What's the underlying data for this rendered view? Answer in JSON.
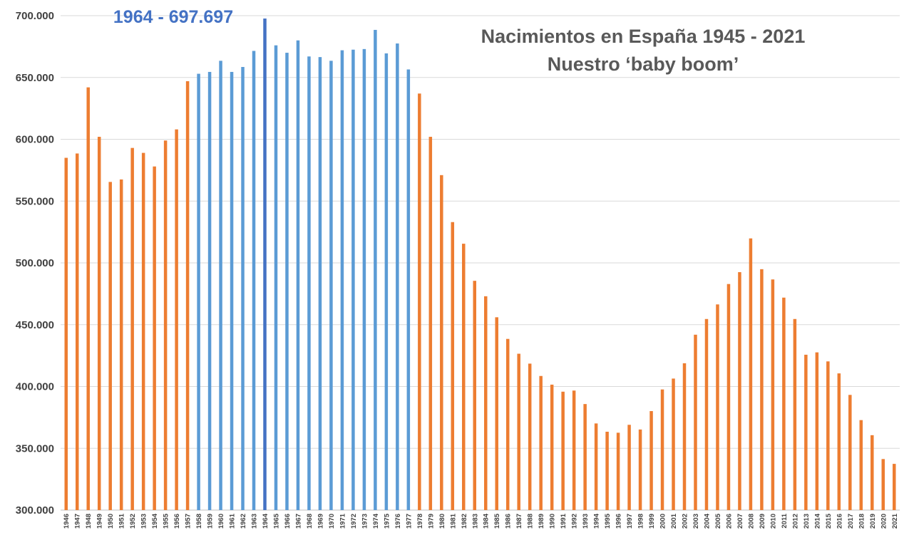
{
  "chart_data": {
    "type": "bar",
    "title": [
      "Nacimientos en España 1945 - 2021",
      "Nuestro ‘baby boom’"
    ],
    "annotation": "1964 - 697.697",
    "xlabel": "",
    "ylabel": "",
    "ylim": [
      300000,
      700000
    ],
    "yticks": [
      300000,
      350000,
      400000,
      450000,
      500000,
      550000,
      600000,
      650000,
      700000
    ],
    "ytick_labels": [
      "300.000",
      "350.000",
      "400.000",
      "450.000",
      "500.000",
      "550.000",
      "600.000",
      "650.000",
      "700.000"
    ],
    "grid": true,
    "colors": {
      "normal": "#ED7D31",
      "baby_boom": "#5B9BD5",
      "peak": "#4472C4",
      "annotation": "#4472C4",
      "grid": "#D9D9D9"
    },
    "baby_boom_range": [
      1958,
      1977
    ],
    "peak_year": "1964",
    "categories": [
      "1946",
      "1947",
      "1948",
      "1949",
      "1950",
      "1951",
      "1952",
      "1953",
      "1954",
      "1955",
      "1956",
      "1957",
      "1958",
      "1959",
      "1960",
      "1961",
      "1962",
      "1963",
      "1964",
      "1965",
      "1966",
      "1967",
      "1968",
      "1969",
      "1970",
      "1971",
      "1972",
      "1973",
      "1974",
      "1975",
      "1976",
      "1977",
      "1978",
      "1979",
      "1980",
      "1981",
      "1982",
      "1983",
      "1984",
      "1985",
      "1986",
      "1987",
      "1988",
      "1989",
      "1990",
      "1991",
      "1992",
      "1993",
      "1994",
      "1995",
      "1996",
      "1997",
      "1998",
      "1999",
      "2000",
      "2001",
      "2002",
      "2003",
      "2004",
      "2005",
      "2006",
      "2007",
      "2008",
      "2009",
      "2010",
      "2011",
      "2012",
      "2013",
      "2014",
      "2015",
      "2016",
      "2017",
      "2018",
      "2019",
      "2020",
      "2021"
    ],
    "values": [
      585000,
      588500,
      642000,
      602000,
      565500,
      567500,
      593000,
      589000,
      578000,
      599000,
      608000,
      647000,
      653000,
      654500,
      663500,
      654500,
      658500,
      671500,
      697697,
      676000,
      670000,
      680000,
      667000,
      666500,
      663500,
      672000,
      672500,
      673000,
      688500,
      669500,
      677500,
      656500,
      637000,
      602000,
      571000,
      533000,
      515500,
      485500,
      473000,
      456000,
      438500,
      426500,
      418500,
      408500,
      401500,
      395800,
      396700,
      385800,
      370100,
      363400,
      362600,
      369000,
      365200,
      380100,
      397600,
      406400,
      418800,
      441900,
      454600,
      466400,
      482900,
      492500,
      519800,
      494900,
      486600,
      471900,
      454600,
      425700,
      427600,
      420300,
      410600,
      393200,
      372800,
      360600,
      341300,
      337400
    ]
  }
}
